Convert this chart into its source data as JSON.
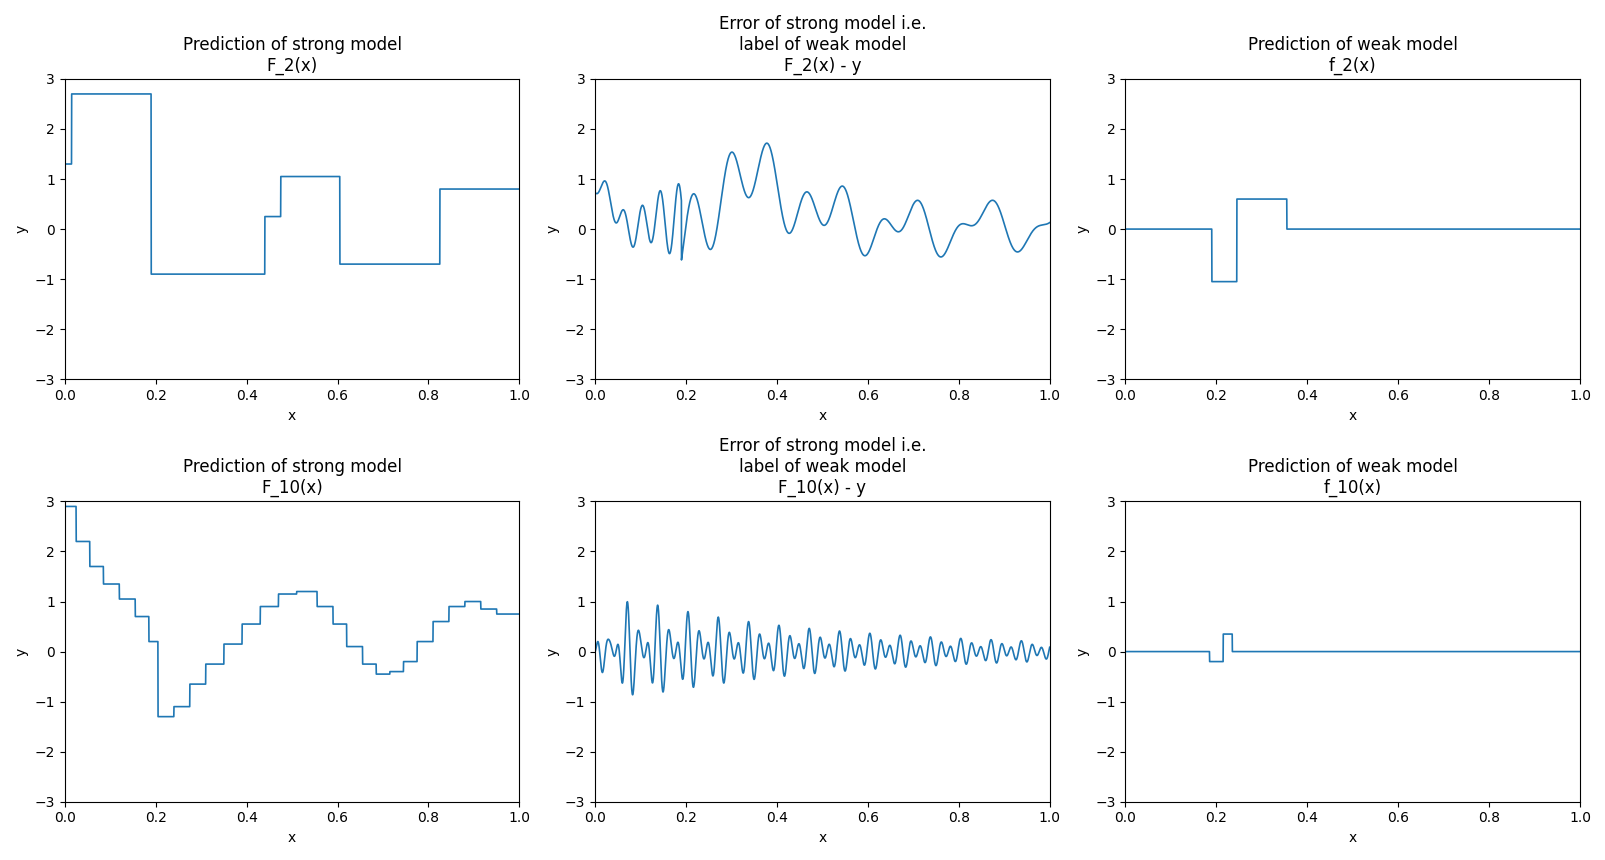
{
  "titles": [
    [
      "Prediction of strong model",
      "F_2(x)"
    ],
    [
      "Error of strong model i.e.\nlabel of weak model",
      "F_2(x) - y"
    ],
    [
      "Prediction of weak model",
      "f_2(x)"
    ],
    [
      "Prediction of strong model",
      "F_10(x)"
    ],
    [
      "Error of strong model i.e.\nlabel of weak model",
      "F_10(x) - y"
    ],
    [
      "Prediction of weak model",
      "f_10(x)"
    ]
  ],
  "line_color": "#1f77b4",
  "ylim": [
    -3,
    3
  ],
  "xlim": [
    0.0,
    1.0
  ],
  "xlabel": "x",
  "ylabel": "y",
  "yticks": [
    -3,
    -2,
    -1,
    0,
    1,
    2,
    3
  ],
  "xticks": [
    0.0,
    0.2,
    0.4,
    0.6,
    0.8,
    1.0
  ],
  "figsize": [
    16.06,
    8.6
  ],
  "dpi": 100
}
